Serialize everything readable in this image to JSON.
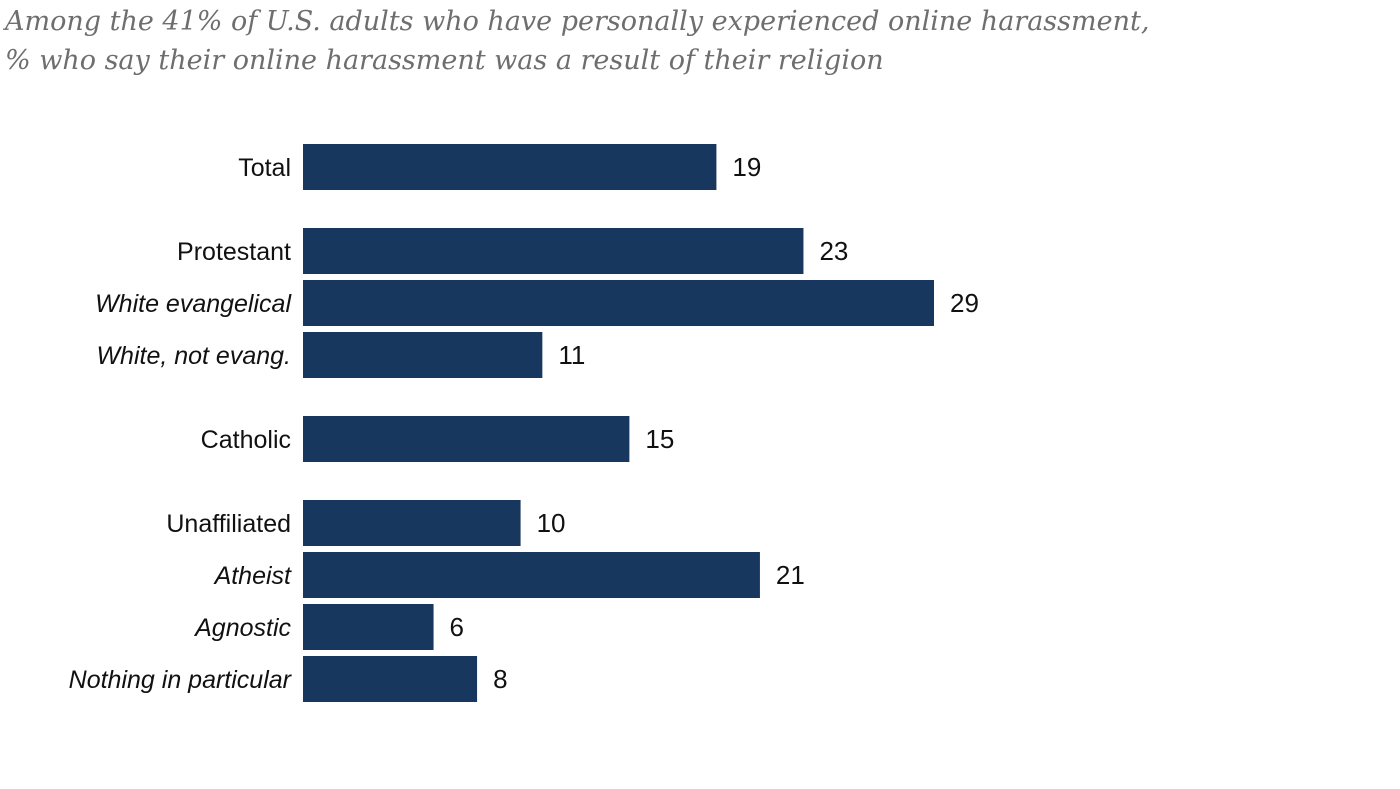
{
  "chart_data": {
    "type": "bar",
    "orientation": "horizontal",
    "subtitle_lines": [
      "Among the 41% of U.S. adults who have personally experienced online harassment,",
      "% who say their online harassment was a result of their religion"
    ],
    "categories": [
      {
        "label": "Total",
        "value": 19,
        "italic": false
      },
      {
        "label": "Protestant",
        "value": 23,
        "italic": false
      },
      {
        "label": "White evangelical",
        "value": 29,
        "italic": true
      },
      {
        "label": "White, not evang.",
        "value": 11,
        "italic": true
      },
      {
        "label": "Catholic",
        "value": 15,
        "italic": false
      },
      {
        "label": "Unaffiliated",
        "value": 10,
        "italic": false
      },
      {
        "label": "Atheist",
        "value": 21,
        "italic": true
      },
      {
        "label": "Agnostic",
        "value": 6,
        "italic": true
      },
      {
        "label": "Nothing in particular",
        "value": 8,
        "italic": true
      }
    ],
    "groups": [
      [
        0
      ],
      [
        1,
        2,
        3
      ],
      [
        4
      ],
      [
        5,
        6,
        7,
        8
      ]
    ],
    "xlim": [
      0,
      29
    ],
    "bar_color": "#17375e",
    "subtitle_color": "#6e6e6e",
    "grid": false,
    "legend": "none"
  }
}
